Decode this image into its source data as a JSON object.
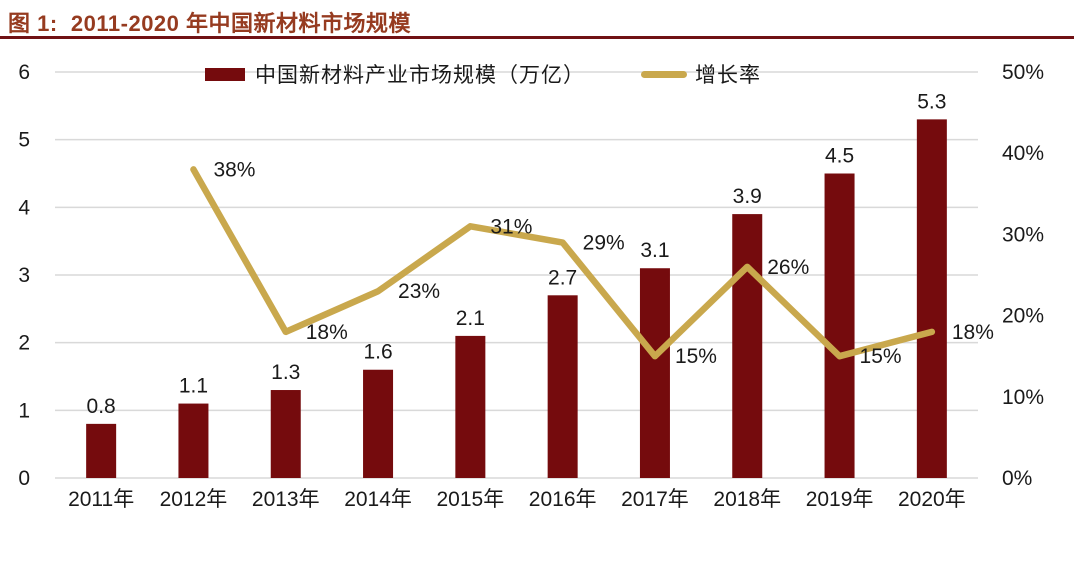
{
  "title": "图 1:  2011-2020 年中国新材料市场规模",
  "colors": {
    "title": "#963B20",
    "title_underline": "#701114",
    "bar": "#750B0D",
    "line": "#C9A84D",
    "grid": "#D9D9D9",
    "text": "#1A1A1A",
    "background": "#FFFFFF"
  },
  "legend": {
    "bar_label": "中国新材料产业市场规模（万亿）",
    "line_label": "增长率"
  },
  "chart_data": {
    "type": "bar",
    "subtype": "bar+line dual-axis combo",
    "title": "图 1: 2011-2020 年中国新材料市场规模",
    "categories": [
      "2011年",
      "2012年",
      "2013年",
      "2014年",
      "2015年",
      "2016年",
      "2017年",
      "2018年",
      "2019年",
      "2020年"
    ],
    "series": [
      {
        "name": "中国新材料产业市场规模（万亿）",
        "type": "bar",
        "axis": "left",
        "color": "#750B0D",
        "values": [
          0.8,
          1.1,
          1.3,
          1.6,
          2.1,
          2.7,
          3.1,
          3.9,
          4.5,
          5.3
        ],
        "labels": [
          "0.8",
          "1.1",
          "1.3",
          "1.6",
          "2.1",
          "2.7",
          "3.1",
          "3.9",
          "4.5",
          "5.3"
        ]
      },
      {
        "name": "增长率",
        "type": "line",
        "axis": "right",
        "color": "#C9A84D",
        "x_start_index": 1,
        "values": [
          38,
          18,
          23,
          31,
          29,
          15,
          26,
          15,
          18
        ],
        "labels": [
          "38%",
          "18%",
          "23%",
          "31%",
          "29%",
          "15%",
          "26%",
          "15%",
          "18%"
        ]
      }
    ],
    "left_axis": {
      "min": 0,
      "max": 6,
      "ticks": [
        "0",
        "1",
        "2",
        "3",
        "4",
        "5",
        "6"
      ]
    },
    "right_axis": {
      "min": 0,
      "max": 50,
      "ticks": [
        "0%",
        "10%",
        "20%",
        "30%",
        "40%",
        "50%"
      ]
    },
    "grid": true,
    "legend_position": "top-center",
    "xlabel": "",
    "ylabel_left": "万亿",
    "ylabel_right": "%"
  }
}
